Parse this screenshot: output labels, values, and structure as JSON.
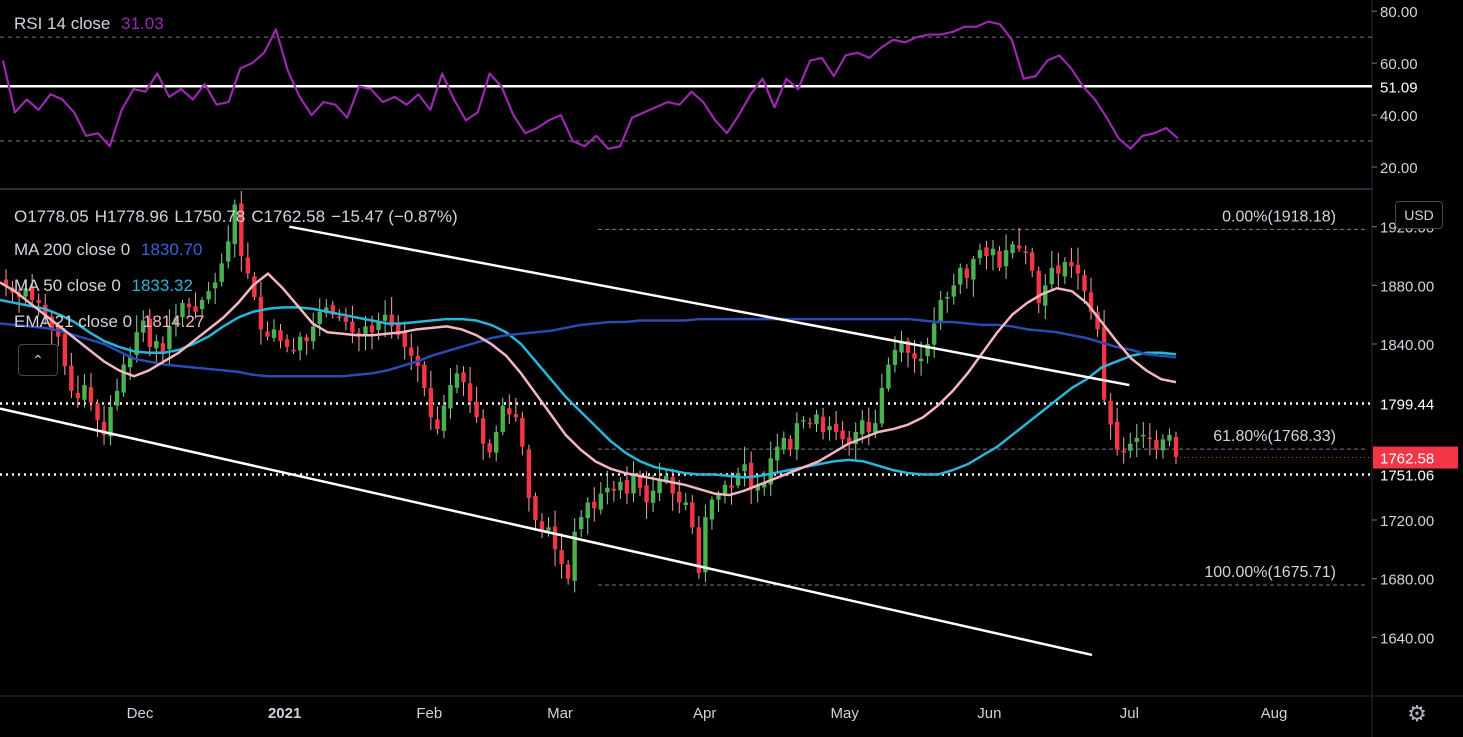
{
  "rsi_legend": {
    "name": "RSI 14 close",
    "value": "31.03",
    "value_color": "#9c27b0"
  },
  "ohlc_legend": {
    "o": "O1778.05",
    "h": "H1778.96",
    "l": "L1750.78",
    "c": "C1762.58",
    "chg": "−15.47 (−0.87%)"
  },
  "ma200_legend": {
    "name": "MA 200 close 0",
    "value": "1830.70",
    "color": "#2a4bb0"
  },
  "ma50_legend": {
    "name": "MA 50 close 0",
    "value": "1833.32",
    "color": "#29b6d9"
  },
  "ema21_legend": {
    "name": "EMA 21 close 0",
    "value": "1814.27",
    "color": "#f4b6c2"
  },
  "currency_button": "USD",
  "collapse_icon": "chevron-up-icon",
  "settings_icon": "gear-icon",
  "chart_data": [
    {
      "type": "line",
      "panel": "RSI",
      "title": "RSI 14 close",
      "ylim": [
        15,
        82
      ],
      "y_ticks": [
        "80.00",
        "60.00",
        "40.00",
        "20.00"
      ],
      "tick_values": [
        80,
        60,
        40,
        20
      ],
      "levels": [
        70,
        30
      ],
      "horizontal_line": {
        "value": 51.09,
        "label": "51.09"
      },
      "series": [
        {
          "values": [
            61,
            41,
            46,
            42,
            48,
            46,
            41,
            32,
            33,
            28,
            42,
            50,
            49,
            56,
            47,
            50,
            46,
            52,
            44,
            45,
            58,
            60,
            64,
            73,
            57,
            47,
            40,
            45,
            44,
            39,
            51,
            50,
            45,
            47,
            44,
            48,
            42,
            56,
            46,
            38,
            41,
            56,
            51,
            40,
            33,
            35,
            38,
            40,
            30,
            28,
            32,
            27,
            28,
            39,
            41,
            43,
            45,
            44,
            49,
            45,
            38,
            33,
            40,
            48,
            54,
            43,
            54,
            50,
            61,
            62,
            55,
            63,
            64,
            62,
            66,
            69,
            68,
            70,
            71,
            71,
            72,
            74,
            74,
            76,
            75,
            69,
            54,
            55,
            61,
            63,
            58,
            51,
            46,
            39,
            31,
            27,
            32,
            33,
            35,
            31
          ],
          "color": "#9c27b0"
        }
      ]
    },
    {
      "type": "candlestick",
      "panel": "Price",
      "ylim": [
        1600,
        1945
      ],
      "y_ticks": [
        "1920.00",
        "1880.00",
        "1840.00",
        "1799.44",
        "1762.58",
        "1751.06",
        "1720.00",
        "1680.00",
        "1640.00"
      ],
      "tick_values": [
        1920,
        1880,
        1840,
        1720,
        1680,
        1640
      ],
      "x_ticks": [
        "Dec",
        "2021",
        "Feb",
        "Mar",
        "Apr",
        "May",
        "Jun",
        "Jul",
        "Aug"
      ],
      "horizontal_levels": [
        {
          "value": 1799.44,
          "label": "1799.44"
        },
        {
          "value": 1751.06,
          "label": "1751.06"
        }
      ],
      "last_price": {
        "value": 1762.58,
        "label": "1762.58",
        "color": "#f23645"
      },
      "fibonacci": [
        {
          "value": 1918.18,
          "label": "0.00%(1918.18)"
        },
        {
          "value": 1768.33,
          "label": "61.80%(1768.33)"
        },
        {
          "value": 1675.71,
          "label": "100.00%(1675.71)"
        }
      ],
      "trendlines": [
        {
          "from": [
            "2021-01-02",
            1920
          ],
          "to": [
            "2021-07-01",
            1812
          ]
        },
        {
          "from": [
            "2020-11-01",
            1796
          ],
          "to": [
            "2021-06-23",
            1628
          ]
        }
      ],
      "close": [
        1880,
        1875,
        1872,
        1878,
        1870,
        1868,
        1860,
        1850,
        1845,
        1825,
        1808,
        1803,
        1812,
        1800,
        1788,
        1778,
        1797,
        1808,
        1826,
        1832,
        1848,
        1856,
        1838,
        1842,
        1835,
        1852,
        1858,
        1868,
        1865,
        1862,
        1870,
        1876,
        1882,
        1895,
        1910,
        1935,
        1900,
        1888,
        1872,
        1850,
        1845,
        1850,
        1842,
        1838,
        1836,
        1845,
        1842,
        1852,
        1862,
        1865,
        1860,
        1858,
        1855,
        1848,
        1846,
        1852,
        1848,
        1855,
        1860,
        1852,
        1846,
        1838,
        1832,
        1825,
        1810,
        1790,
        1782,
        1798,
        1812,
        1820,
        1814,
        1801,
        1790,
        1772,
        1766,
        1780,
        1798,
        1792,
        1790,
        1770,
        1735,
        1720,
        1712,
        1715,
        1700,
        1690,
        1680,
        1712,
        1722,
        1732,
        1728,
        1738,
        1742,
        1740,
        1746,
        1738,
        1752,
        1742,
        1732,
        1740,
        1748,
        1750,
        1738,
        1732,
        1732,
        1715,
        1684,
        1722,
        1734,
        1738,
        1744,
        1742,
        1752,
        1758,
        1742,
        1744,
        1745,
        1762,
        1770,
        1776,
        1768,
        1786,
        1788,
        1786,
        1792,
        1780,
        1784,
        1780,
        1775,
        1772,
        1780,
        1788,
        1780,
        1786,
        1810,
        1826,
        1836,
        1842,
        1834,
        1830,
        1830,
        1840,
        1854,
        1870,
        1872,
        1880,
        1892,
        1885,
        1898,
        1904,
        1900,
        1905,
        1892,
        1904,
        1908,
        1905,
        1902,
        1890,
        1868,
        1880,
        1892,
        1888,
        1896,
        1893,
        1888,
        1876,
        1862,
        1850,
        1802,
        1785,
        1768,
        1766,
        1772,
        1776,
        1778,
        1776,
        1768,
        1775,
        1778,
        1763
      ],
      "ma200": [
        1854,
        1853,
        1852,
        1851,
        1849,
        1846,
        1843,
        1840,
        1835,
        1830,
        1828,
        1826,
        1825,
        1824,
        1823,
        1822,
        1821,
        1819,
        1818,
        1818,
        1818,
        1818,
        1818,
        1818,
        1819,
        1820,
        1822,
        1825,
        1828,
        1832,
        1835,
        1838,
        1841,
        1844,
        1846,
        1847,
        1848,
        1849,
        1851,
        1853,
        1854,
        1855,
        1855,
        1856,
        1856,
        1856,
        1856,
        1857,
        1857,
        1857,
        1857,
        1857,
        1857,
        1857,
        1857,
        1857,
        1857,
        1857,
        1857,
        1857,
        1857,
        1857,
        1856,
        1855,
        1855,
        1854,
        1853,
        1853,
        1852,
        1850,
        1849,
        1848,
        1846,
        1844,
        1841,
        1838,
        1836,
        1833,
        1832,
        1831
      ],
      "ma50": [
        1870,
        1868,
        1866,
        1864,
        1860,
        1855,
        1848,
        1842,
        1838,
        1835,
        1834,
        1834,
        1836,
        1840,
        1845,
        1852,
        1858,
        1862,
        1864,
        1865,
        1865,
        1864,
        1862,
        1860,
        1858,
        1856,
        1854,
        1854,
        1855,
        1856,
        1857,
        1857,
        1856,
        1853,
        1848,
        1840,
        1828,
        1816,
        1804,
        1794,
        1784,
        1774,
        1766,
        1760,
        1756,
        1754,
        1752,
        1751,
        1751,
        1750,
        1749,
        1750,
        1752,
        1754,
        1756,
        1758,
        1760,
        1761,
        1760,
        1757,
        1754,
        1752,
        1751,
        1751,
        1754,
        1758,
        1764,
        1770,
        1778,
        1786,
        1794,
        1802,
        1810,
        1816,
        1824,
        1828,
        1832,
        1834,
        1834,
        1833
      ],
      "ema21": [
        1882,
        1876,
        1868,
        1860,
        1852,
        1844,
        1836,
        1828,
        1822,
        1818,
        1822,
        1828,
        1834,
        1842,
        1850,
        1858,
        1868,
        1880,
        1888,
        1878,
        1866,
        1854,
        1848,
        1847,
        1846,
        1846,
        1847,
        1848,
        1850,
        1851,
        1852,
        1850,
        1846,
        1840,
        1832,
        1820,
        1806,
        1792,
        1778,
        1768,
        1760,
        1755,
        1752,
        1750,
        1748,
        1746,
        1744,
        1741,
        1738,
        1737,
        1740,
        1744,
        1748,
        1752,
        1756,
        1760,
        1766,
        1772,
        1776,
        1780,
        1782,
        1785,
        1790,
        1798,
        1808,
        1820,
        1834,
        1848,
        1860,
        1868,
        1874,
        1878,
        1876,
        1868,
        1855,
        1842,
        1830,
        1822,
        1816,
        1814
      ]
    }
  ]
}
